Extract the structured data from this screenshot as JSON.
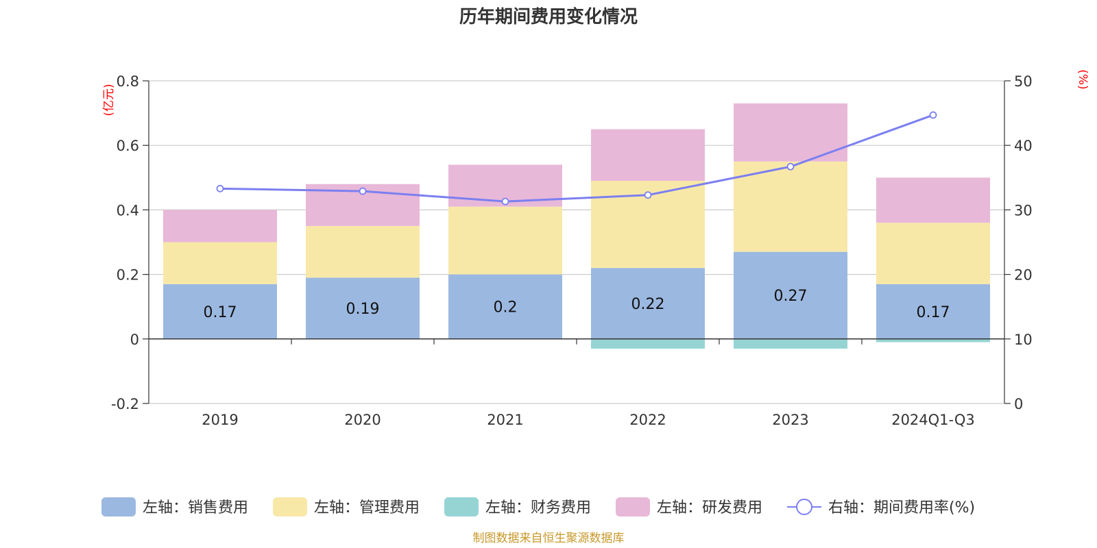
{
  "chart_data": {
    "type": "bar",
    "stacked": true,
    "title": "历年期间费用变化情况",
    "categories": [
      "2019",
      "2020",
      "2021",
      "2022",
      "2023",
      "2024Q1-Q3"
    ],
    "left_axis": {
      "unit": "(亿元)",
      "min": -0.2,
      "max": 0.8,
      "ticks": [
        -0.2,
        0,
        0.2,
        0.4,
        0.6,
        0.8
      ],
      "tick_labels": [
        "-0.2",
        "0",
        "0.2",
        "0.4",
        "0.6",
        "0.8"
      ]
    },
    "right_axis": {
      "unit": "(%)",
      "min": 0,
      "max": 50,
      "ticks": [
        0,
        10,
        20,
        30,
        40,
        50
      ],
      "tick_labels": [
        "0",
        "10",
        "20",
        "30",
        "40",
        "50"
      ]
    },
    "series": [
      {
        "name": "左轴：销售费用",
        "type": "bar",
        "axis": "left",
        "color": "#9bb8e0",
        "values": [
          0.17,
          0.19,
          0.2,
          0.22,
          0.27,
          0.17
        ],
        "labels": [
          "0.17",
          "0.19",
          "0.2",
          "0.22",
          "0.27",
          "0.17"
        ]
      },
      {
        "name": "左轴：管理费用",
        "type": "bar",
        "axis": "left",
        "color": "#f8e8a8",
        "values": [
          0.13,
          0.16,
          0.21,
          0.27,
          0.28,
          0.19
        ]
      },
      {
        "name": "左轴：财务费用",
        "type": "bar",
        "axis": "left",
        "color": "#96d4d4",
        "values": [
          0,
          0,
          0,
          -0.03,
          -0.03,
          -0.01
        ]
      },
      {
        "name": "左轴：研发费用",
        "type": "bar",
        "axis": "left",
        "color": "#e8b8d8",
        "values": [
          0.1,
          0.13,
          0.13,
          0.16,
          0.18,
          0.14
        ]
      },
      {
        "name": "右轴：期间费用率(%)",
        "type": "line",
        "axis": "right",
        "color": "#7b7ff0",
        "values": [
          33.3,
          32.9,
          31.3,
          32.3,
          36.7,
          44.7
        ]
      }
    ],
    "grid": true,
    "legend": "bottom",
    "source": "制图数据来自恒生聚源数据库"
  }
}
